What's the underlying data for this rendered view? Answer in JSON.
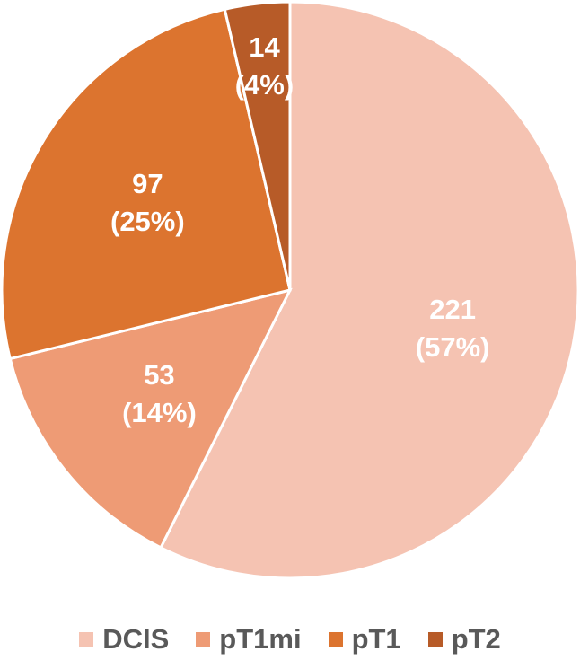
{
  "chart_data": {
    "type": "pie",
    "categories": [
      "DCIS",
      "pT1mi",
      "pT1",
      "pT2"
    ],
    "values": [
      221,
      53,
      97,
      14
    ],
    "value_labels": [
      "221\n(57%)",
      "53\n(14%)",
      "97\n(25%)",
      "14\n(4%)"
    ],
    "colors": [
      "#f5c3b2",
      "#ee9b75",
      "#dc742f",
      "#b75b28"
    ],
    "legend": "bottom"
  }
}
